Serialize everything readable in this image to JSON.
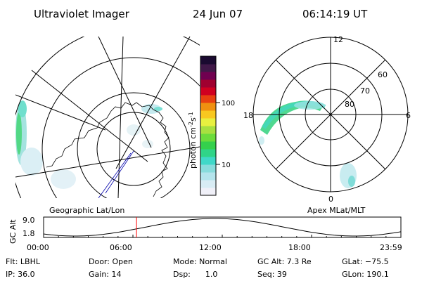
{
  "header": {
    "instrument": "Ultraviolet Imager",
    "date": "24 Jun 07",
    "time": "06:14:19 UT"
  },
  "colorbar": {
    "unit_label": "photon cm",
    "unit_sup1": "-2",
    "unit_s": "s",
    "unit_sup2": "-1",
    "ticks": [
      "100",
      "10"
    ],
    "colors": [
      "#f0f0f8",
      "#d8ecf4",
      "#b4e4ec",
      "#88dcdc",
      "#40d8c8",
      "#30d488",
      "#34d04c",
      "#6cdc3c",
      "#a8e040",
      "#e8f040",
      "#f8c820",
      "#f09010",
      "#e84010",
      "#d00020",
      "#a00030",
      "#700050",
      "#401848",
      "#1a0a30"
    ]
  },
  "left_map": {
    "label": "Geographic Lat/Lon"
  },
  "right_map": {
    "label": "Apex MLat/MLT",
    "mlt_labels": {
      "top": "12",
      "left": "18",
      "right": "6",
      "bottom": "0"
    },
    "lat_labels": [
      "60",
      "70",
      "80"
    ]
  },
  "altitude_plot": {
    "ylabel": "GC Alt",
    "yticks": [
      "9.0",
      "1.8"
    ],
    "xticks": [
      "00:00",
      "06:00",
      "12:00",
      "18:00",
      "23:59"
    ],
    "marker_time_hours": 6.24
  },
  "info": {
    "filter": "Flt: LBHL",
    "door": "Door: Open",
    "mode": "Mode: Normal",
    "gc_alt": "GC Alt: 7.3 Re",
    "glat": "GLat: −75.5",
    "ip": "IP: 36.0",
    "gain": "Gain: 14",
    "dsp": "Dsp:      1.0",
    "seq": "Seq: 39",
    "glon": "GLon: 190.1"
  },
  "colors": {
    "marker": "#ff0000",
    "ink": "#000000",
    "coast": "#000000"
  }
}
